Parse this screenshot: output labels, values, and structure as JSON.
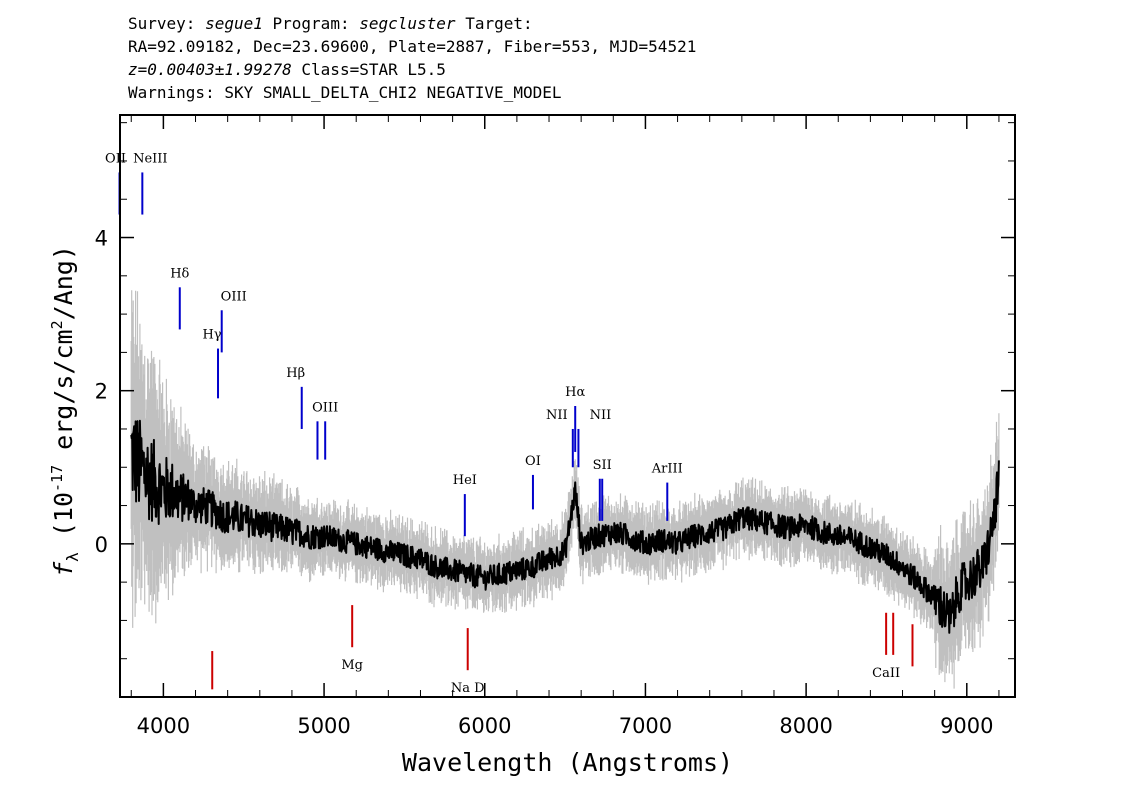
{
  "header": {
    "survey_label": "Survey:",
    "survey": "segue1",
    "program_label": "Program:",
    "program": "segcluster",
    "target_label": "Target:",
    "line2": "RA=92.09182, Dec=23.69600, Plate=2887, Fiber=553, MJD=54521",
    "redshift": "z=0.00403±1.99278",
    "class": "Class=STAR L5.5",
    "warnings": "Warnings: SKY SMALL_DELTA_CHI2 NEGATIVE_MODEL"
  },
  "chart_data": {
    "type": "line",
    "xlabel": "Wavelength (Angstroms)",
    "ylabel": "f_λ (10^-17 erg/s/cm^2/Ang)",
    "xlim": [
      3730,
      9300
    ],
    "ylim": [
      -2.0,
      5.6
    ],
    "x_ticks": [
      4000,
      5000,
      6000,
      7000,
      8000,
      9000
    ],
    "y_ticks": [
      0,
      2,
      4
    ],
    "colors": {
      "flux": "#000000",
      "error_band": "#c0c0c0",
      "emission": "#0000cc",
      "absorption": "#cc0000"
    },
    "series": [
      {
        "color": "#000000",
        "x": [
          3800,
          3850,
          3900,
          3950,
          4000,
          4050,
          4100,
          4150,
          4200,
          4250,
          4300,
          4350,
          4400,
          4450,
          4500,
          4550,
          4600,
          4650,
          4700,
          4750,
          4800,
          4850,
          4900,
          4950,
          5000,
          5100,
          5200,
          5300,
          5400,
          5500,
          5600,
          5700,
          5800,
          5900,
          6000,
          6100,
          6200,
          6300,
          6400,
          6500,
          6563,
          6600,
          6700,
          6800,
          6900,
          7000,
          7100,
          7200,
          7300,
          7400,
          7500,
          7600,
          7700,
          7800,
          7900,
          8000,
          8100,
          8200,
          8300,
          8400,
          8500,
          8600,
          8700,
          8800,
          8900,
          8950,
          9000,
          9050,
          9100,
          9150,
          9200
        ],
        "values": [
          1.2,
          1.0,
          0.9,
          0.8,
          0.7,
          0.7,
          0.6,
          0.6,
          0.5,
          0.5,
          0.45,
          0.4,
          0.35,
          0.35,
          0.3,
          0.3,
          0.25,
          0.25,
          0.2,
          0.2,
          0.15,
          0.15,
          0.1,
          0.1,
          0.1,
          0.05,
          0.0,
          -0.05,
          -0.1,
          -0.15,
          -0.2,
          -0.3,
          -0.35,
          -0.4,
          -0.45,
          -0.4,
          -0.35,
          -0.3,
          -0.2,
          -0.1,
          0.7,
          0.0,
          0.1,
          0.15,
          0.1,
          0.0,
          0.05,
          0.0,
          0.1,
          0.15,
          0.2,
          0.35,
          0.3,
          0.25,
          0.2,
          0.25,
          0.15,
          0.1,
          0.05,
          -0.05,
          -0.15,
          -0.3,
          -0.5,
          -0.7,
          -1.0,
          -0.6,
          -0.5,
          -0.4,
          -0.3,
          0.1,
          0.8
        ]
      }
    ],
    "emission_lines": [
      {
        "label": "OII",
        "x": 3727,
        "y_top": 4.85,
        "y_bottom": 4.3
      },
      {
        "label": "NeIII",
        "x": 3869,
        "y_top": 4.85,
        "y_bottom": 4.3
      },
      {
        "label": "Hδ",
        "x": 4102,
        "y_top": 3.35,
        "y_bottom": 2.8
      },
      {
        "label": "Hγ",
        "x": 4340,
        "y_top": 2.55,
        "y_bottom": 1.9
      },
      {
        "label": "OIII",
        "x": 4363,
        "y_top": 3.05,
        "y_bottom": 2.5
      },
      {
        "label": "Hβ",
        "x": 4861,
        "y_top": 2.05,
        "y_bottom": 1.5
      },
      {
        "label": "OIII",
        "x": 4959,
        "y_top": 1.6,
        "y_bottom": 1.1
      },
      {
        "label": "OIII",
        "x": 5007,
        "y_top": 1.6,
        "y_bottom": 1.1
      },
      {
        "label": "HeI",
        "x": 5876,
        "y_top": 0.65,
        "y_bottom": 0.1
      },
      {
        "label": "OI",
        "x": 6300,
        "y_top": 0.9,
        "y_bottom": 0.45
      },
      {
        "label": "NII",
        "x": 6548,
        "y_top": 1.5,
        "y_bottom": 1.0
      },
      {
        "label": "Hα",
        "x": 6563,
        "y_top": 1.8,
        "y_bottom": 1.2
      },
      {
        "label": "NII",
        "x": 6583,
        "y_top": 1.5,
        "y_bottom": 1.0
      },
      {
        "label": "SII",
        "x": 6716,
        "y_top": 0.85,
        "y_bottom": 0.3
      },
      {
        "label": "SII",
        "x": 6731,
        "y_top": 0.85,
        "y_bottom": 0.3
      },
      {
        "label": "ArIII",
        "x": 7136,
        "y_top": 0.8,
        "y_bottom": 0.3
      }
    ],
    "absorption_lines": [
      {
        "label": "",
        "x": 4304,
        "y_top": -1.4,
        "y_bottom": -1.9
      },
      {
        "label": "Mg",
        "x": 5175,
        "y_top": -0.8,
        "y_bottom": -1.35
      },
      {
        "label": "Na D",
        "x": 5894,
        "y_top": -1.1,
        "y_bottom": -1.65
      },
      {
        "label": "CaII",
        "x": 8498,
        "y_top": -0.9,
        "y_bottom": -1.45
      },
      {
        "label": "",
        "x": 8542,
        "y_top": -0.9,
        "y_bottom": -1.45
      },
      {
        "label": "",
        "x": 8662,
        "y_top": -1.05,
        "y_bottom": -1.6
      }
    ]
  }
}
